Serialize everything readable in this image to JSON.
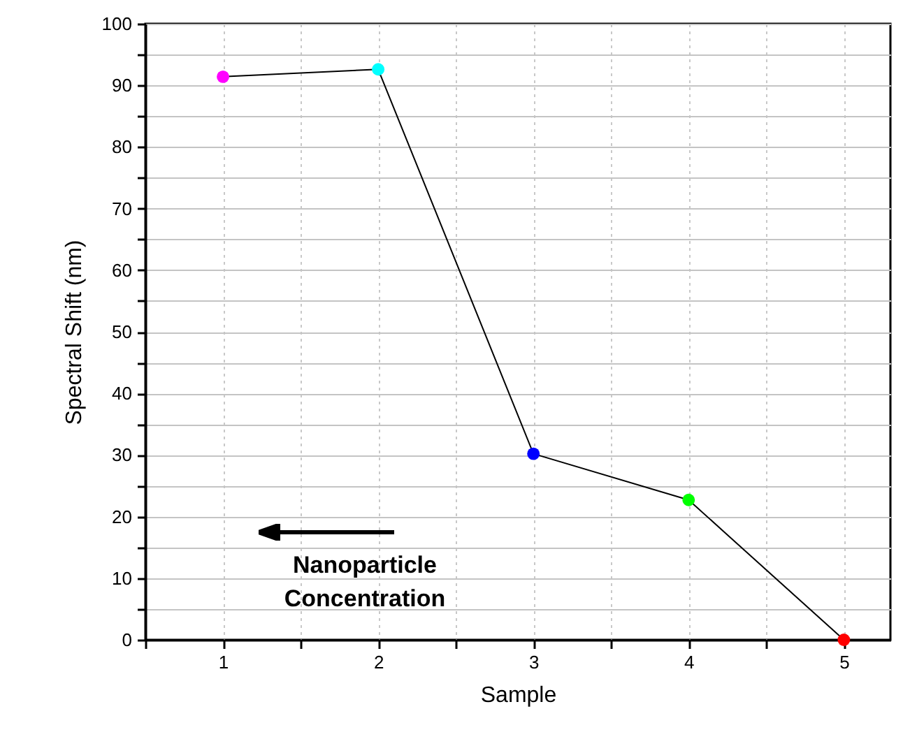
{
  "chart_data": {
    "type": "line",
    "xlabel": "Sample",
    "ylabel": "Spectral Shift (nm)",
    "x": [
      1,
      2,
      3,
      4,
      5
    ],
    "series": [
      {
        "color": "#000000",
        "colors": [
          "#ff00ff",
          "#00ffff",
          "#0000ff",
          "#00ff00",
          "#ff0000"
        ],
        "values": [
          91.4,
          92.6,
          30.2,
          22.7,
          0
        ]
      }
    ],
    "xlim": [
      0.5,
      5.3
    ],
    "xticks": [
      {
        "value": 0.5,
        "label": null
      },
      1,
      {
        "value": 1.5,
        "label": null
      },
      2,
      {
        "value": 2.5,
        "label": null
      },
      3,
      {
        "value": 3.5,
        "label": null
      },
      4,
      {
        "value": 4.5,
        "label": null
      },
      5
    ],
    "ylim": [
      0,
      100
    ],
    "yticks": [
      0,
      {
        "value": 5,
        "label": null
      },
      10,
      {
        "value": 15,
        "label": null
      },
      20,
      {
        "value": 25,
        "label": null
      },
      30,
      {
        "value": 35,
        "label": null
      },
      40,
      {
        "value": 45,
        "label": null
      },
      50,
      {
        "value": 55,
        "label": null
      },
      60,
      {
        "value": 65,
        "label": null
      },
      70,
      {
        "value": 75,
        "label": null
      },
      80,
      {
        "value": 85,
        "label": null
      },
      90,
      {
        "value": 95,
        "label": null
      },
      100
    ],
    "grid": true,
    "marker": "circle",
    "line_style": "solid",
    "annotations": [
      "Nanoparticle Concentration"
    ]
  }
}
